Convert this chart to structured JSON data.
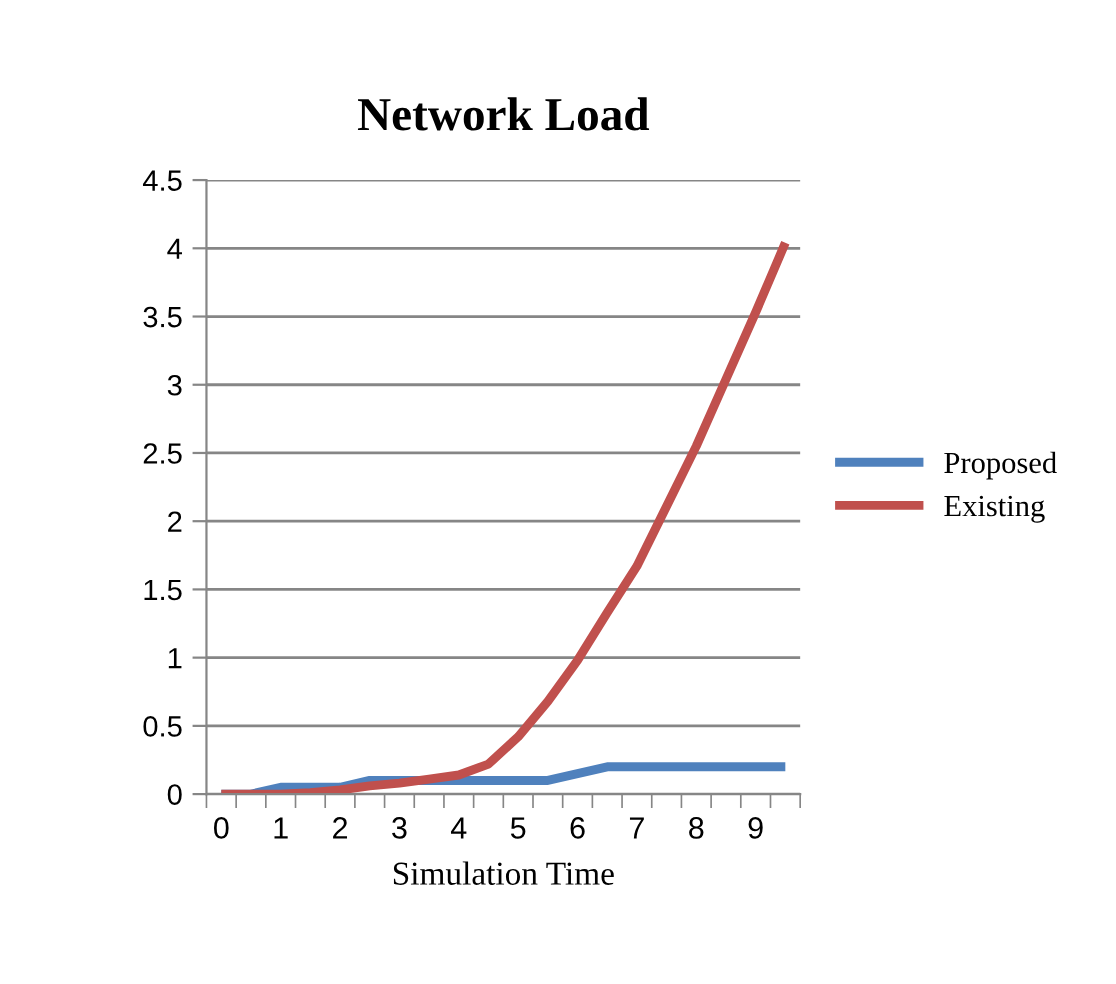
{
  "chart_data": {
    "type": "line",
    "title": "Network Load",
    "xlabel": "Simulation Time",
    "categories": [
      "0",
      null,
      "1",
      null,
      "2",
      null,
      "3",
      null,
      "4",
      null,
      "5",
      null,
      "6",
      null,
      "7",
      null,
      "8",
      null,
      "9",
      null
    ],
    "series": [
      {
        "name": "Proposed",
        "color": "#4f81bd",
        "values": [
          0,
          0,
          0.05,
          0.05,
          0.05,
          0.1,
          0.1,
          0.1,
          0.1,
          0.1,
          0.1,
          0.1,
          0.15,
          0.2,
          0.2,
          0.2,
          0.2,
          0.2,
          0.2,
          0.2
        ]
      },
      {
        "name": "Existing",
        "color": "#c0504d",
        "values": [
          0,
          0,
          0,
          0.01,
          0.03,
          0.06,
          0.08,
          0.11,
          0.14,
          0.22,
          0.42,
          0.68,
          0.98,
          1.33,
          1.67,
          2.11,
          2.55,
          3.04,
          3.53,
          4.04
        ]
      }
    ],
    "ylim": [
      0,
      4.5
    ],
    "yticks": [
      0,
      0.5,
      1,
      1.5,
      2,
      2.5,
      3,
      3.5,
      4,
      4.5
    ],
    "grid": "y",
    "legend": "right",
    "marker": "none",
    "line_style": "solid"
  }
}
